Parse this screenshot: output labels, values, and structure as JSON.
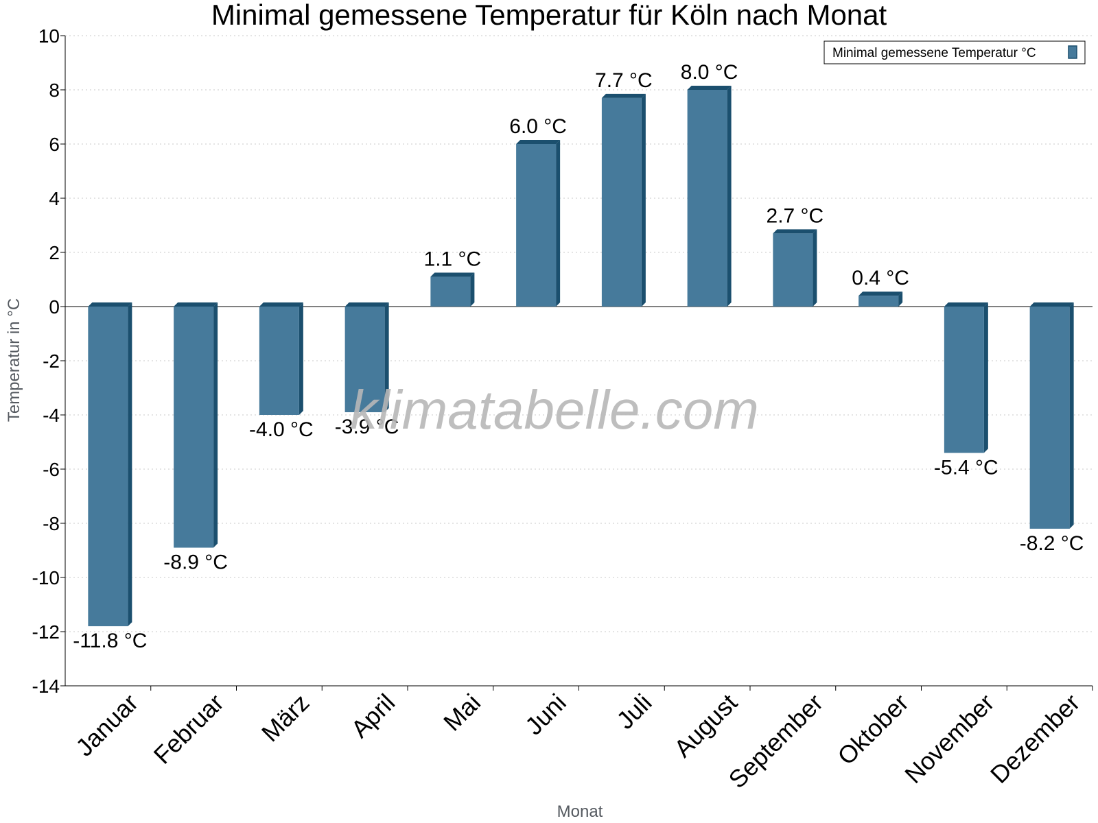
{
  "chart_data": {
    "type": "bar",
    "title": "Minimal gemessene Temperatur für Köln nach Monat",
    "xlabel": "Monat",
    "ylabel": "Temperatur in °C",
    "ylim": [
      -14,
      10
    ],
    "yticks": [
      "10",
      "8",
      "6",
      "4",
      "2",
      "0",
      "-2",
      "-4",
      "-6",
      "-8",
      "-10",
      "-12",
      "-14"
    ],
    "grid": true,
    "legend_position": "top-right",
    "categories": [
      "Januar",
      "Februar",
      "März",
      "April",
      "Mai",
      "Juni",
      "Juli",
      "August",
      "September",
      "Oktober",
      "November",
      "Dezember"
    ],
    "series": [
      {
        "name": "Minimal gemessene Temperatur °C",
        "values": [
          -11.8,
          -8.9,
          -4.0,
          -3.9,
          1.1,
          6.0,
          7.7,
          8.0,
          2.7,
          0.4,
          -5.4,
          -8.2
        ],
        "labels": [
          "-11.8 °C",
          "-8.9 °C",
          "-4.0 °C",
          "-3.9 °C",
          "1.1 °C",
          "6.0 °C",
          "7.7 °C",
          "8.0 °C",
          "2.7 °C",
          "0.4 °C",
          "-5.4 °C",
          "-8.2 °C"
        ]
      }
    ],
    "colors": {
      "bar": "#467a9b",
      "bar_side": "#1b4f6e",
      "grid": "#c8c8c8"
    }
  },
  "watermark": "klimatabelle.com"
}
